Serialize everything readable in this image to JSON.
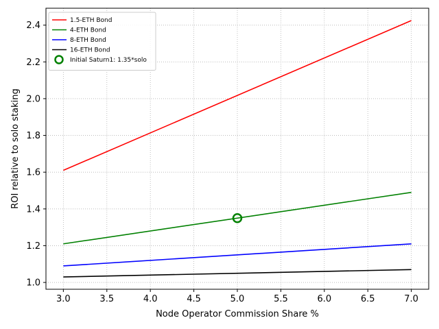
{
  "chart_data": {
    "type": "line",
    "title": "",
    "xlabel": "Node Operator Commission Share %",
    "ylabel": "ROI relative to solo staking",
    "xlim": [
      2.8,
      7.2
    ],
    "ylim": [
      0.963,
      2.492
    ],
    "x_ticks": [
      3.0,
      3.5,
      4.0,
      4.5,
      5.0,
      5.5,
      6.0,
      6.5,
      7.0
    ],
    "x_tick_labels": [
      "3.0",
      "3.5",
      "4.0",
      "4.5",
      "5.0",
      "5.5",
      "6.0",
      "6.5",
      "7.0"
    ],
    "y_ticks": [
      1.0,
      1.2,
      1.4,
      1.6,
      1.8,
      2.0,
      2.2,
      2.4
    ],
    "y_tick_labels": [
      "1.0",
      "1.2",
      "1.4",
      "1.6",
      "1.8",
      "2.0",
      "2.2",
      "2.4"
    ],
    "grid": true,
    "legend_position": "top-left",
    "series": [
      {
        "name": "1.5-ETH Bond",
        "color": "#ff0000",
        "x": [
          3.0,
          7.0
        ],
        "y": [
          1.61,
          2.425
        ]
      },
      {
        "name": "4-ETH Bond",
        "color": "#008000",
        "x": [
          3.0,
          7.0
        ],
        "y": [
          1.21,
          1.49
        ]
      },
      {
        "name": "8-ETH Bond",
        "color": "#0000ff",
        "x": [
          3.0,
          7.0
        ],
        "y": [
          1.09,
          1.21
        ]
      },
      {
        "name": "16-ETH Bond",
        "color": "#000000",
        "x": [
          3.0,
          7.0
        ],
        "y": [
          1.03,
          1.07
        ]
      }
    ],
    "markers": [
      {
        "name": "Initial Saturn1: 1.35*solo",
        "color": "#008000",
        "x": 5.0,
        "y": 1.35,
        "style": "hollow-circle"
      }
    ]
  }
}
